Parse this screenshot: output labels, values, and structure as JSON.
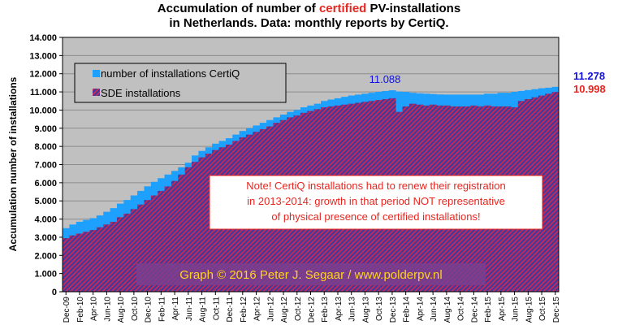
{
  "title": {
    "line1_pre": "Accumulation of number of ",
    "line1_highlight": "certified",
    "line1_post": " PV-installations",
    "line2": "in Netherlands. Data: monthly reports by CertiQ."
  },
  "colors": {
    "plot_background": "#c0c0c0",
    "certiq_series": "#1ea0ff",
    "sde_series_stripe_a": "#c02a5a",
    "sde_series_stripe_b": "#3a3aa0",
    "highlight_red": "#e8251f",
    "blue_label": "#1010e0",
    "note_border": "#e8251f",
    "credit_box": "#7a3f90",
    "credit_text": "#ffd21f"
  },
  "legend": {
    "certiq_label": "number of installations CertiQ",
    "sde_label": "SDE installations"
  },
  "note": {
    "lines": [
      "Note! CertiQ installations had to renew their registration",
      "in 2013-2014: growth in that period NOT representative",
      "of physical presence of certified installations!"
    ]
  },
  "credit": "Graph © 2016 Peter J. Segaar / www.polderpv.nl",
  "annotations": {
    "peak_label": "11.088",
    "last_certiq_label": "11.278",
    "last_sde_label": "10.998"
  },
  "chart_data": {
    "type": "area",
    "ylabel": "Accumulation number of installations",
    "xlabel": "",
    "ylim": [
      0,
      14000
    ],
    "ytick_labels": [
      "0",
      "1.000",
      "2.000",
      "3.000",
      "4.000",
      "5.000",
      "6.000",
      "7.000",
      "8.000",
      "9.000",
      "10.000",
      "11.000",
      "12.000",
      "13.000",
      "14.000"
    ],
    "grid": true,
    "legend_position": "top-left",
    "x": [
      "Dec-09",
      "Jan-10",
      "Feb-10",
      "Mar-10",
      "Apr-10",
      "May-10",
      "Jun-10",
      "Jul-10",
      "Aug-10",
      "Sep-10",
      "Oct-10",
      "Nov-10",
      "Dec-10",
      "Jan-11",
      "Feb-11",
      "Mar-11",
      "Apr-11",
      "May-11",
      "Jun-11",
      "Jul-11",
      "Aug-11",
      "Sep-11",
      "Oct-11",
      "Nov-11",
      "Dec-11",
      "Jan-12",
      "Feb-12",
      "Mar-12",
      "Apr-12",
      "May-12",
      "Jun-12",
      "Jul-12",
      "Aug-12",
      "Sep-12",
      "Oct-12",
      "Nov-12",
      "Dec-12",
      "Jan-13",
      "Feb-13",
      "Mar-13",
      "Apr-13",
      "May-13",
      "Jun-13",
      "Jul-13",
      "Aug-13",
      "Sep-13",
      "Oct-13",
      "Nov-13",
      "Dec-13",
      "Jan-14",
      "Feb-14",
      "Mar-14",
      "Apr-14",
      "May-14",
      "Jun-14",
      "Jul-14",
      "Aug-14",
      "Sep-14",
      "Oct-14",
      "Nov-14",
      "Dec-14",
      "Jan-15",
      "Feb-15",
      "Mar-15",
      "Apr-15",
      "May-15",
      "Jun-15",
      "Jul-15",
      "Aug-15",
      "Sep-15",
      "Oct-15",
      "Nov-15",
      "Dec-15"
    ],
    "x_tick_labels": [
      "Dec-09",
      "Feb-10",
      "Apr-10",
      "Jun-10",
      "Aug-10",
      "Oct-10",
      "Dec-10",
      "Feb-11",
      "Apr-11",
      "Jun-11",
      "Aug-11",
      "Oct-11",
      "Dec-11",
      "Feb-12",
      "Apr-12",
      "Jun-12",
      "Aug-12",
      "Oct-12",
      "Dec-12",
      "Feb-13",
      "Apr-13",
      "Jun-13",
      "Aug-13",
      "Oct-13",
      "Dec-13",
      "Feb-14",
      "Apr-14",
      "Jun-14",
      "Aug-14",
      "Oct-14",
      "Dec-14",
      "Feb-15",
      "Apr-15",
      "Jun-15",
      "Aug-15",
      "Oct-15",
      "Dec-15"
    ],
    "series": [
      {
        "name": "number of installations CertiQ",
        "values": [
          3500,
          3700,
          3850,
          3950,
          4050,
          4200,
          4400,
          4600,
          4850,
          5050,
          5300,
          5550,
          5800,
          6050,
          6250,
          6450,
          6650,
          6850,
          7100,
          7500,
          7750,
          7950,
          8150,
          8300,
          8450,
          8650,
          8850,
          9000,
          9150,
          9300,
          9450,
          9600,
          9750,
          9900,
          10000,
          10150,
          10250,
          10350,
          10500,
          10580,
          10650,
          10730,
          10800,
          10850,
          10900,
          10950,
          11000,
          11050,
          11088,
          11020,
          11000,
          10950,
          10920,
          10900,
          10880,
          10860,
          10850,
          10850,
          10850,
          10850,
          10850,
          10850,
          10900,
          10900,
          10950,
          10950,
          11000,
          11050,
          11100,
          11150,
          11200,
          11230,
          11278
        ]
      },
      {
        "name": "SDE installations",
        "values": [
          2950,
          3100,
          3200,
          3300,
          3400,
          3550,
          3700,
          3850,
          4100,
          4300,
          4550,
          4800,
          5050,
          5300,
          5550,
          5800,
          6100,
          6450,
          6850,
          7150,
          7400,
          7600,
          7800,
          7950,
          8100,
          8300,
          8500,
          8650,
          8800,
          8950,
          9100,
          9300,
          9450,
          9600,
          9700,
          9850,
          9950,
          10050,
          10150,
          10200,
          10250,
          10300,
          10350,
          10400,
          10450,
          10500,
          10550,
          10600,
          10650,
          9900,
          10200,
          10350,
          10300,
          10250,
          10300,
          10250,
          10250,
          10200,
          10200,
          10200,
          10250,
          10200,
          10250,
          10200,
          10200,
          10200,
          10150,
          10500,
          10600,
          10700,
          10800,
          10900,
          10998
        ]
      }
    ]
  }
}
